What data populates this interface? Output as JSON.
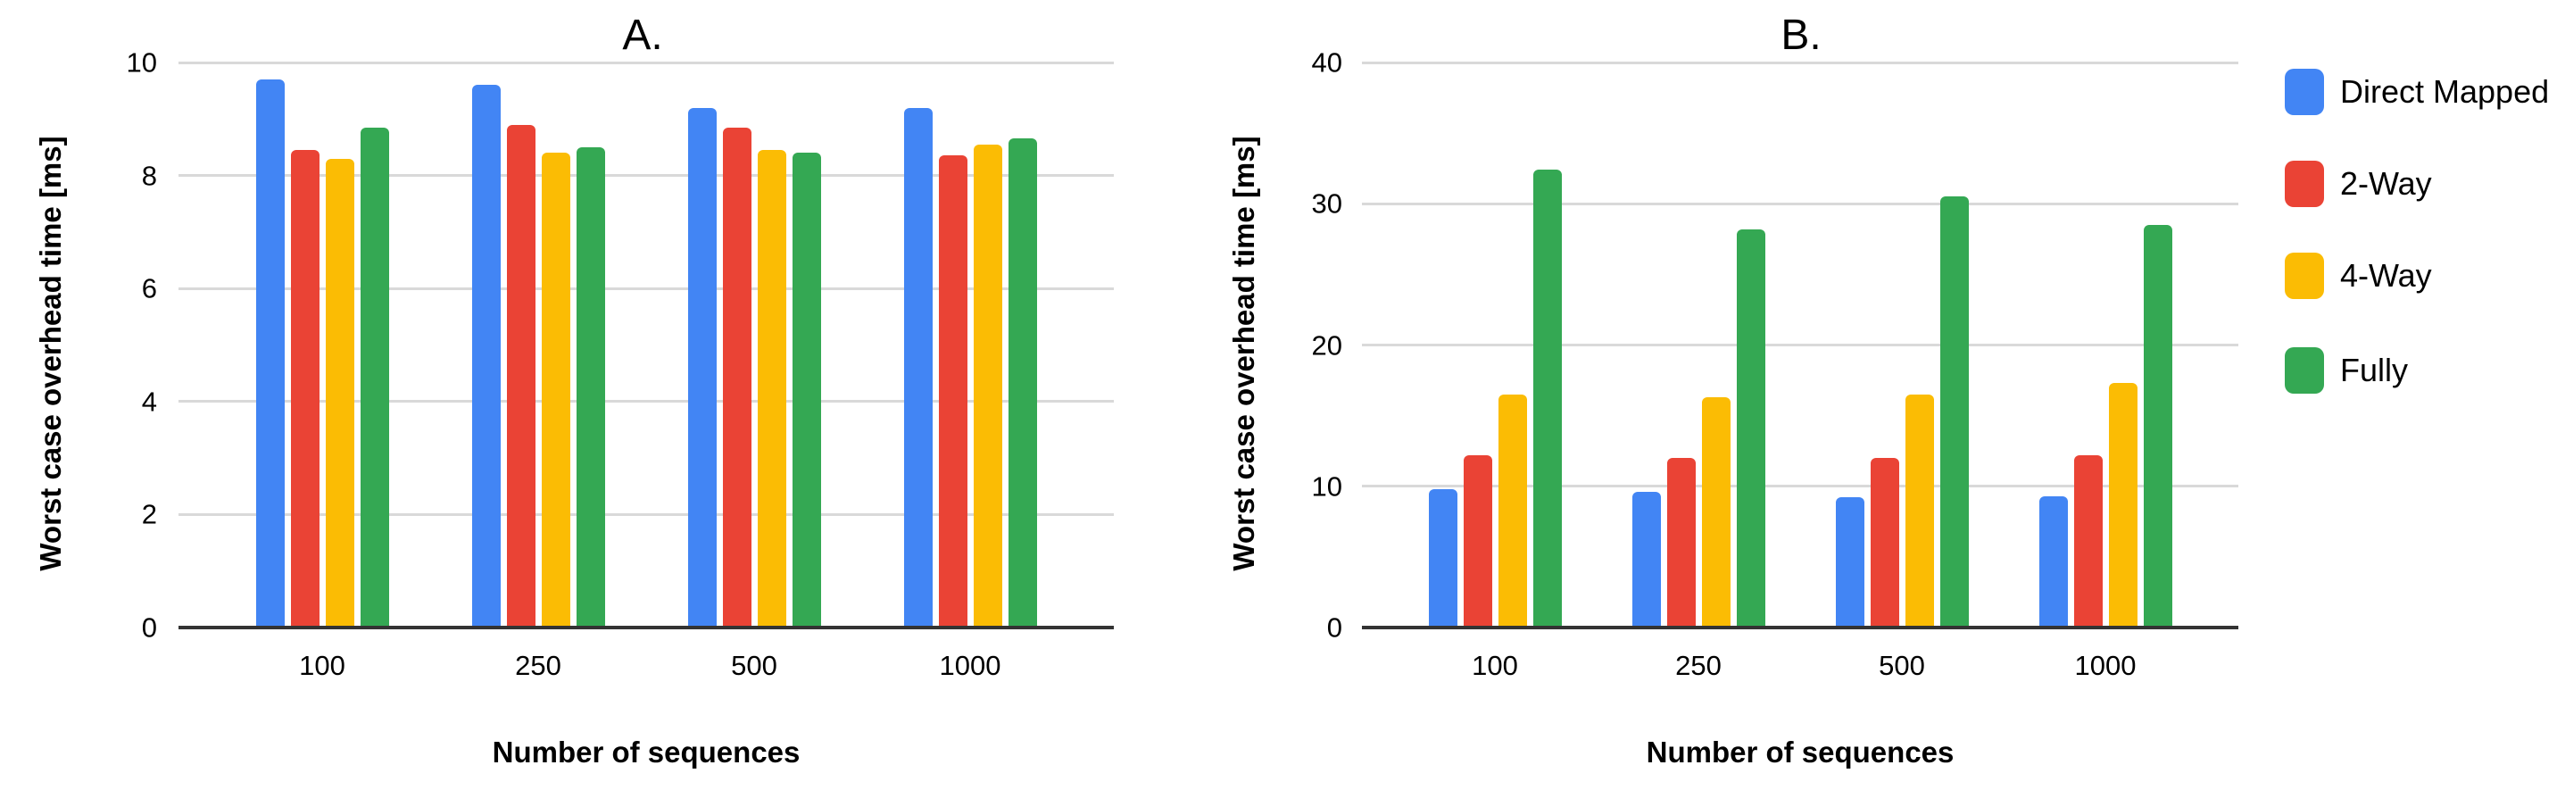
{
  "page": {
    "background": "#ffffff"
  },
  "legend": {
    "items": [
      {
        "label": "Direct Mapped",
        "color": "#4285F4"
      },
      {
        "label": "2-Way",
        "color": "#EA4335"
      },
      {
        "label": "4-Way",
        "color": "#FBBC04"
      },
      {
        "label": "Fully",
        "color": "#34A853"
      }
    ]
  },
  "chart_data": [
    {
      "type": "bar",
      "title": "A.",
      "xlabel": "Number of sequences",
      "ylabel": "Worst case overhead time [ms]",
      "categories": [
        "100",
        "250",
        "500",
        "1000"
      ],
      "series": [
        {
          "name": "Direct Mapped",
          "color": "#4285F4",
          "values": [
            9.7,
            9.6,
            9.2,
            9.2
          ]
        },
        {
          "name": "2-Way",
          "color": "#EA4335",
          "values": [
            8.45,
            8.9,
            8.85,
            8.35
          ]
        },
        {
          "name": "4-Way",
          "color": "#FBBC04",
          "values": [
            8.3,
            8.4,
            8.45,
            8.55
          ]
        },
        {
          "name": "Fully",
          "color": "#34A853",
          "values": [
            8.85,
            8.5,
            8.4,
            8.65
          ]
        }
      ],
      "ylim": [
        0,
        10
      ],
      "yticks": [
        0,
        2,
        4,
        6,
        8,
        10
      ],
      "grid": true,
      "legend_position": "none"
    },
    {
      "type": "bar",
      "title": "B.",
      "xlabel": "Number of sequences",
      "ylabel": "Worst case overhead time [ms]",
      "categories": [
        "100",
        "250",
        "500",
        "1000"
      ],
      "series": [
        {
          "name": "Direct Mapped",
          "color": "#4285F4",
          "values": [
            9.8,
            9.6,
            9.2,
            9.3
          ]
        },
        {
          "name": "2-Way",
          "color": "#EA4335",
          "values": [
            12.2,
            12.0,
            12.0,
            12.2
          ]
        },
        {
          "name": "4-Way",
          "color": "#FBBC04",
          "values": [
            16.5,
            16.3,
            16.5,
            17.3
          ]
        },
        {
          "name": "Fully",
          "color": "#34A853",
          "values": [
            32.4,
            28.2,
            30.5,
            28.5
          ]
        }
      ],
      "ylim": [
        0,
        40
      ],
      "yticks": [
        0,
        10,
        20,
        30,
        40
      ],
      "grid": true,
      "legend_position": "right"
    }
  ],
  "styles": {
    "gridline_color": "#d9d9d9",
    "axis_line_color": "#333333",
    "text_color": "#000000"
  }
}
